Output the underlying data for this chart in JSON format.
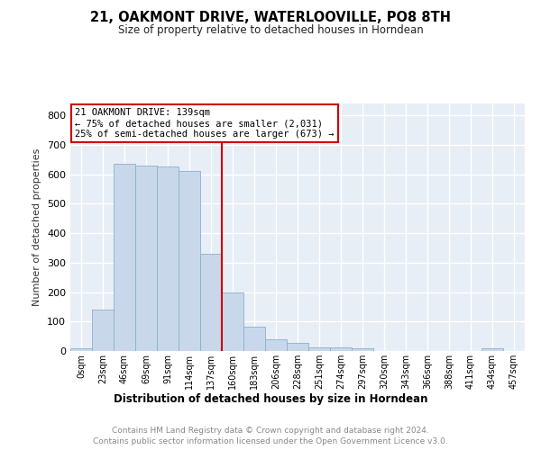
{
  "title": "21, OAKMONT DRIVE, WATERLOOVILLE, PO8 8TH",
  "subtitle": "Size of property relative to detached houses in Horndean",
  "xlabel": "Distribution of detached houses by size in Horndean",
  "ylabel": "Number of detached properties",
  "bar_color": "#c8d8ea",
  "bar_edge_color": "#8ab0cc",
  "background_color": "#e8eef5",
  "grid_color": "white",
  "categories": [
    "0sqm",
    "23sqm",
    "46sqm",
    "69sqm",
    "91sqm",
    "114sqm",
    "137sqm",
    "160sqm",
    "183sqm",
    "206sqm",
    "228sqm",
    "251sqm",
    "274sqm",
    "297sqm",
    "320sqm",
    "343sqm",
    "366sqm",
    "388sqm",
    "411sqm",
    "434sqm",
    "457sqm"
  ],
  "values": [
    8,
    140,
    635,
    630,
    625,
    610,
    330,
    200,
    83,
    40,
    27,
    12,
    11,
    9,
    0,
    0,
    0,
    0,
    0,
    8,
    0
  ],
  "vline_x": 6.5,
  "vline_color": "#cc0000",
  "annotation_title": "21 OAKMONT DRIVE: 139sqm",
  "annotation_line1": "← 75% of detached houses are smaller (2,031)",
  "annotation_line2": "25% of semi-detached houses are larger (673) →",
  "annotation_box_color": "white",
  "annotation_box_edge": "#cc0000",
  "ylim": [
    0,
    840
  ],
  "yticks": [
    0,
    100,
    200,
    300,
    400,
    500,
    600,
    700,
    800
  ],
  "footer_line1": "Contains HM Land Registry data © Crown copyright and database right 2024.",
  "footer_line2": "Contains public sector information licensed under the Open Government Licence v3.0."
}
